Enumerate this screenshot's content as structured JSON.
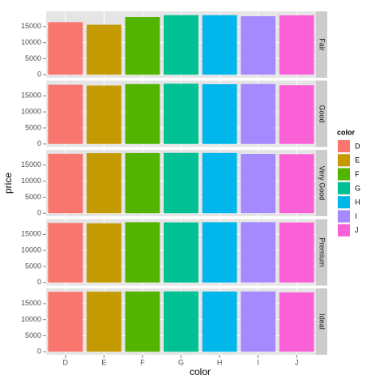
{
  "chart_data": {
    "type": "bar",
    "x_label": "color",
    "y_label": "price",
    "categories": [
      "D",
      "E",
      "F",
      "G",
      "H",
      "I",
      "J"
    ],
    "colors": [
      "#f8766d",
      "#c49a00",
      "#53b400",
      "#00c094",
      "#00b6eb",
      "#a58aff",
      "#fb61d7"
    ],
    "legend_title": "color",
    "legend_position": "right",
    "grid": true,
    "ylim": [
      -941,
      19764
    ],
    "yticks": [
      0,
      5000,
      10000,
      15000
    ],
    "facets": [
      {
        "name": "Fair",
        "values": [
          16386,
          15584,
          17995,
          18574,
          18565,
          18242,
          18531
        ]
      },
      {
        "name": "Good",
        "values": [
          18468,
          18236,
          18686,
          18788,
          18640,
          18707,
          18325
        ]
      },
      {
        "name": "Very Good",
        "values": [
          18542,
          18731,
          18777,
          18818,
          18803,
          18500,
          18430
        ]
      },
      {
        "name": "Premium",
        "values": [
          18575,
          18477,
          18791,
          18741,
          18795,
          18797,
          18710
        ]
      },
      {
        "name": "Ideal",
        "values": [
          18693,
          18729,
          18780,
          18806,
          18760,
          18779,
          18508
        ]
      }
    ]
  }
}
